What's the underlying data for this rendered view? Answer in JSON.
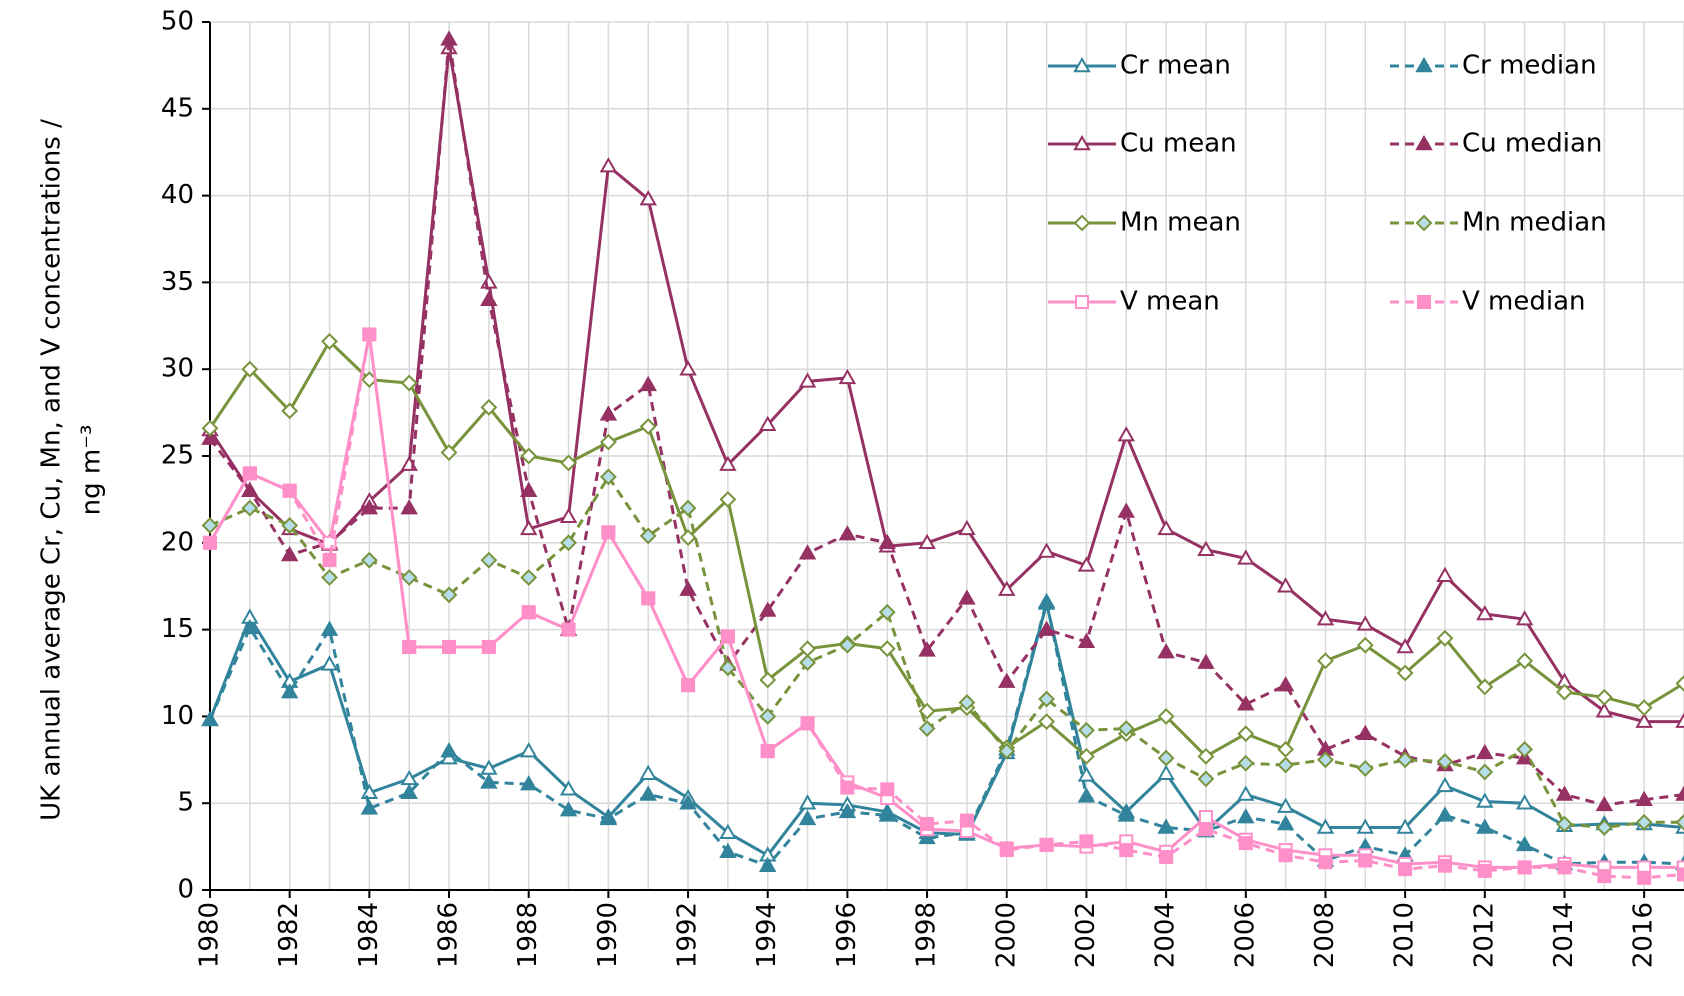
{
  "chart_data": {
    "type": "line",
    "y_label": [
      "UK annual average Cr, Cu, Mn, and V concentrations /",
      "ng m⁻³"
    ],
    "x": [
      1980,
      1981,
      1982,
      1983,
      1984,
      1985,
      1986,
      1987,
      1988,
      1989,
      1990,
      1991,
      1992,
      1993,
      1994,
      1995,
      1996,
      1997,
      1998,
      1999,
      2000,
      2001,
      2002,
      2003,
      2004,
      2005,
      2006,
      2007,
      2008,
      2009,
      2010,
      2011,
      2012,
      2013,
      2014,
      2015,
      2016,
      2017
    ],
    "xlim": [
      1980,
      2017
    ],
    "xticks": [
      1980,
      1982,
      1984,
      1986,
      1988,
      1990,
      1992,
      1994,
      1996,
      1998,
      2000,
      2002,
      2004,
      2006,
      2008,
      2010,
      2012,
      2014,
      2016
    ],
    "ylim": [
      0,
      50
    ],
    "yticks": [
      0,
      5,
      10,
      15,
      20,
      25,
      30,
      35,
      40,
      45,
      50
    ],
    "grid": true,
    "legend": "top-right",
    "series": [
      {
        "name": "Cr mean",
        "color": "#31849b",
        "marker": "triangle",
        "filled": false,
        "dashed": false,
        "values": [
          9.8,
          15.7,
          12.0,
          13.0,
          5.6,
          6.4,
          7.6,
          7.0,
          8.0,
          5.8,
          4.2,
          6.7,
          5.3,
          3.3,
          2.0,
          5.0,
          4.9,
          4.5,
          3.3,
          3.2,
          7.9,
          16.5,
          6.6,
          4.5,
          6.7,
          3.4,
          5.5,
          4.8,
          3.6,
          3.6,
          3.6,
          6.0,
          5.1,
          5.0,
          3.7,
          3.8,
          3.8,
          3.6
        ]
      },
      {
        "name": "Cr median",
        "color": "#31849b",
        "marker": "triangle",
        "filled": true,
        "dashed": true,
        "values": [
          9.8,
          15.1,
          11.4,
          15.0,
          4.7,
          5.6,
          8.0,
          6.2,
          6.1,
          4.6,
          4.1,
          5.5,
          5.0,
          2.2,
          1.4,
          4.1,
          4.5,
          4.3,
          3.0,
          3.3,
          8.1,
          16.6,
          5.4,
          4.3,
          3.6,
          3.4,
          4.2,
          3.8,
          1.7,
          2.5,
          2.0,
          4.3,
          3.6,
          2.6,
          1.5,
          1.6,
          1.6,
          1.5
        ]
      },
      {
        "name": "Cu mean",
        "color": "#953163",
        "marker": "triangle",
        "filled": false,
        "dashed": false,
        "values": [
          26.5,
          23.0,
          20.8,
          19.9,
          22.4,
          24.5,
          48.5,
          35.0,
          20.8,
          21.5,
          41.7,
          39.8,
          30.0,
          24.5,
          26.8,
          29.3,
          29.5,
          19.8,
          20.0,
          20.8,
          17.3,
          19.5,
          18.7,
          26.2,
          20.8,
          19.6,
          19.1,
          17.5,
          15.6,
          15.3,
          14.0,
          18.1,
          15.9,
          15.6,
          12.0,
          10.3,
          9.7,
          9.7
        ]
      },
      {
        "name": "Cu median",
        "color": "#953163",
        "marker": "triangle",
        "filled": true,
        "dashed": true,
        "values": [
          26.0,
          23.0,
          19.3,
          20.0,
          22.0,
          22.0,
          49.0,
          34.0,
          23.0,
          15.0,
          27.4,
          29.1,
          17.3,
          13.0,
          16.1,
          19.4,
          20.5,
          20.0,
          13.8,
          16.8,
          12.0,
          15.0,
          14.3,
          21.8,
          13.7,
          13.1,
          10.7,
          11.8,
          8.1,
          9.0,
          7.7,
          7.2,
          7.9,
          7.6,
          5.5,
          4.9,
          5.2,
          5.5
        ]
      },
      {
        "name": "Mn mean",
        "color": "#77933c",
        "marker": "diamond",
        "filled": false,
        "dashed": false,
        "values": [
          26.6,
          30.0,
          27.6,
          31.6,
          29.4,
          29.2,
          25.2,
          27.8,
          25.0,
          24.6,
          25.8,
          26.7,
          20.3,
          22.5,
          12.1,
          13.9,
          14.2,
          13.9,
          10.3,
          10.5,
          8.2,
          9.7,
          7.7,
          9.0,
          10.0,
          7.7,
          9.0,
          8.1,
          13.2,
          14.1,
          12.5,
          14.5,
          11.7,
          13.2,
          11.4,
          11.1,
          10.5,
          11.9
        ]
      },
      {
        "name": "Mn median",
        "color": "#77933c",
        "marker": "diamond",
        "filled": true,
        "marker_fill": "#b7dee8",
        "dashed": true,
        "values": [
          21.0,
          22.0,
          21.0,
          18.0,
          19.0,
          18.0,
          17.0,
          19.0,
          18.0,
          20.0,
          23.8,
          20.4,
          22.0,
          12.8,
          10.0,
          13.1,
          14.1,
          16.0,
          9.3,
          10.8,
          8.0,
          11.0,
          9.2,
          9.3,
          7.6,
          6.4,
          7.3,
          7.2,
          7.5,
          7.0,
          7.5,
          7.4,
          6.8,
          8.1,
          3.8,
          3.6,
          3.9,
          3.9
        ]
      },
      {
        "name": "V mean",
        "color": "#ff8fc8",
        "marker": "square",
        "filled": false,
        "dashed": false,
        "values": [
          20.0,
          24.0,
          23.0,
          20.0,
          32.0,
          14.0,
          14.0,
          14.0,
          16.0,
          15.0,
          20.6,
          16.8,
          11.8,
          14.6,
          8.0,
          9.6,
          6.2,
          5.3,
          3.5,
          3.4,
          2.4,
          2.6,
          2.5,
          2.8,
          2.2,
          4.2,
          2.9,
          2.3,
          2.0,
          2.0,
          1.5,
          1.6,
          1.3,
          1.3,
          1.5,
          1.3,
          1.3,
          1.3
        ]
      },
      {
        "name": "V median",
        "color": "#ff8fc8",
        "marker": "square",
        "filled": true,
        "dashed": true,
        "values": [
          20.0,
          24.0,
          23.0,
          19.0,
          32.0,
          14.0,
          14.0,
          14.0,
          16.0,
          15.0,
          20.6,
          16.8,
          11.8,
          14.6,
          8.0,
          9.6,
          5.9,
          5.8,
          3.8,
          4.0,
          2.3,
          2.6,
          2.8,
          2.3,
          1.9,
          3.5,
          2.7,
          2.0,
          1.6,
          1.7,
          1.2,
          1.4,
          1.1,
          1.3,
          1.3,
          0.8,
          0.7,
          0.9
        ]
      }
    ]
  }
}
